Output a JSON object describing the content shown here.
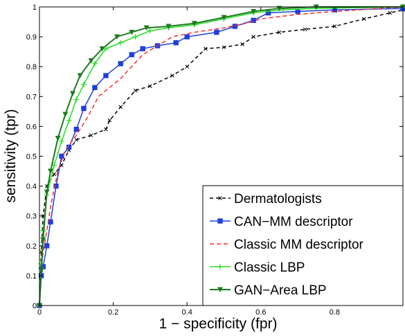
{
  "chart_data": {
    "type": "line",
    "xlabel": "1 − specificity (fpr)",
    "ylabel": "sensitivity (tpr)",
    "xlim": [
      0,
      0.985
    ],
    "ylim": [
      0,
      1
    ],
    "x_ticks": [
      0,
      0.2,
      0.4,
      0.6,
      0.8
    ],
    "y_ticks": [
      0,
      0.1,
      0.2,
      0.3,
      0.4,
      0.5,
      0.6,
      0.7,
      0.8,
      0.9,
      1
    ],
    "grid": false,
    "legend_position": "bottom-right",
    "series": [
      {
        "name": "Dermatologists",
        "color": "#000000",
        "dash": "5,4",
        "marker": "x",
        "points": [
          [
            0,
            0
          ],
          [
            0.005,
            0.18
          ],
          [
            0.01,
            0.3
          ],
          [
            0.02,
            0.4
          ],
          [
            0.04,
            0.44
          ],
          [
            0.06,
            0.47
          ],
          [
            0.08,
            0.52
          ],
          [
            0.1,
            0.555
          ],
          [
            0.14,
            0.57
          ],
          [
            0.18,
            0.59
          ],
          [
            0.19,
            0.62
          ],
          [
            0.22,
            0.665
          ],
          [
            0.26,
            0.72
          ],
          [
            0.3,
            0.735
          ],
          [
            0.36,
            0.77
          ],
          [
            0.4,
            0.8
          ],
          [
            0.45,
            0.86
          ],
          [
            0.5,
            0.865
          ],
          [
            0.55,
            0.875
          ],
          [
            0.58,
            0.9
          ],
          [
            0.65,
            0.915
          ],
          [
            0.72,
            0.925
          ],
          [
            0.8,
            0.935
          ],
          [
            0.88,
            0.96
          ],
          [
            0.95,
            0.98
          ],
          [
            0.985,
            0.99
          ]
        ]
      },
      {
        "name": "CAN−MM descriptor",
        "color": "#1f3fe0",
        "dash": "",
        "marker": "square",
        "points": [
          [
            0,
            0
          ],
          [
            0.005,
            0.1
          ],
          [
            0.01,
            0.13
          ],
          [
            0.02,
            0.2
          ],
          [
            0.03,
            0.28
          ],
          [
            0.045,
            0.4
          ],
          [
            0.06,
            0.5
          ],
          [
            0.08,
            0.53
          ],
          [
            0.1,
            0.59
          ],
          [
            0.12,
            0.66
          ],
          [
            0.15,
            0.73
          ],
          [
            0.18,
            0.77
          ],
          [
            0.22,
            0.81
          ],
          [
            0.25,
            0.84
          ],
          [
            0.28,
            0.86
          ],
          [
            0.32,
            0.87
          ],
          [
            0.37,
            0.88
          ],
          [
            0.4,
            0.9
          ],
          [
            0.48,
            0.915
          ],
          [
            0.53,
            0.935
          ],
          [
            0.58,
            0.955
          ],
          [
            0.62,
            0.98
          ],
          [
            0.7,
            0.985
          ],
          [
            0.8,
            0.99
          ],
          [
            0.985,
            0.995
          ]
        ]
      },
      {
        "name": "Classic MM descriptor",
        "color": "#ff2a2a",
        "dash": "6,4",
        "marker": "none",
        "points": [
          [
            0,
            0
          ],
          [
            0.005,
            0.12
          ],
          [
            0.01,
            0.18
          ],
          [
            0.02,
            0.25
          ],
          [
            0.03,
            0.33
          ],
          [
            0.05,
            0.45
          ],
          [
            0.07,
            0.52
          ],
          [
            0.1,
            0.57
          ],
          [
            0.13,
            0.63
          ],
          [
            0.16,
            0.7
          ],
          [
            0.19,
            0.73
          ],
          [
            0.22,
            0.76
          ],
          [
            0.25,
            0.8
          ],
          [
            0.28,
            0.84
          ],
          [
            0.32,
            0.87
          ],
          [
            0.36,
            0.9
          ],
          [
            0.42,
            0.915
          ],
          [
            0.5,
            0.93
          ],
          [
            0.56,
            0.945
          ],
          [
            0.6,
            0.96
          ],
          [
            0.7,
            0.975
          ],
          [
            0.8,
            0.985
          ],
          [
            0.985,
            1.0
          ]
        ]
      },
      {
        "name": "Classic LBP",
        "color": "#22dd22",
        "dash": "",
        "marker": "plus",
        "points": [
          [
            0,
            0
          ],
          [
            0.005,
            0.14
          ],
          [
            0.01,
            0.25
          ],
          [
            0.02,
            0.37
          ],
          [
            0.04,
            0.47
          ],
          [
            0.06,
            0.55
          ],
          [
            0.08,
            0.62
          ],
          [
            0.1,
            0.69
          ],
          [
            0.12,
            0.74
          ],
          [
            0.15,
            0.81
          ],
          [
            0.18,
            0.86
          ],
          [
            0.22,
            0.88
          ],
          [
            0.26,
            0.9
          ],
          [
            0.3,
            0.92
          ],
          [
            0.35,
            0.93
          ],
          [
            0.42,
            0.94
          ],
          [
            0.5,
            0.96
          ],
          [
            0.58,
            0.98
          ],
          [
            0.66,
            0.99
          ],
          [
            0.75,
            0.995
          ],
          [
            0.985,
            1.0
          ]
        ]
      },
      {
        "name": "GAN−Area LBP",
        "color": "#1e7a1e",
        "dash": "",
        "marker": "triangle-down",
        "points": [
          [
            0,
            0
          ],
          [
            0.005,
            0.12
          ],
          [
            0.01,
            0.22
          ],
          [
            0.02,
            0.38
          ],
          [
            0.03,
            0.45
          ],
          [
            0.05,
            0.56
          ],
          [
            0.07,
            0.64
          ],
          [
            0.09,
            0.71
          ],
          [
            0.11,
            0.77
          ],
          [
            0.14,
            0.82
          ],
          [
            0.17,
            0.86
          ],
          [
            0.21,
            0.9
          ],
          [
            0.25,
            0.915
          ],
          [
            0.29,
            0.93
          ],
          [
            0.35,
            0.935
          ],
          [
            0.42,
            0.945
          ],
          [
            0.5,
            0.965
          ],
          [
            0.58,
            0.985
          ],
          [
            0.65,
            0.995
          ],
          [
            0.75,
            1.0
          ],
          [
            0.985,
            1.0
          ]
        ]
      }
    ]
  }
}
